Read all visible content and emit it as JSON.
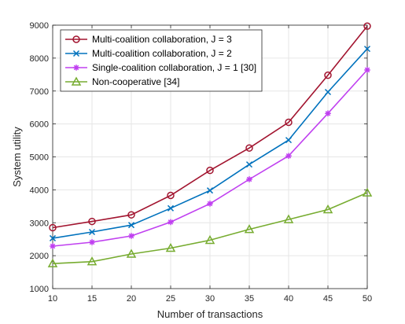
{
  "chart_data": {
    "type": "line",
    "title": "",
    "xlabel": "Number of transactions",
    "ylabel": "System utility",
    "x": [
      10,
      15,
      20,
      25,
      30,
      35,
      40,
      45,
      50
    ],
    "xlim": [
      10,
      50
    ],
    "ylim": [
      1000,
      9000
    ],
    "xticks": [
      10,
      15,
      20,
      25,
      30,
      35,
      40,
      45,
      50
    ],
    "yticks": [
      1000,
      2000,
      3000,
      4000,
      5000,
      6000,
      7000,
      8000,
      9000
    ],
    "grid": true,
    "legend_position": "top-left",
    "series": [
      {
        "name": "Multi-coalition collaboration, J = 3",
        "values": [
          2850,
          3040,
          3240,
          3830,
          4590,
          5270,
          6050,
          7480,
          8970
        ],
        "color": "#A2142F",
        "marker": "circle"
      },
      {
        "name": "Multi-coalition collaboration, J = 2",
        "values": [
          2530,
          2720,
          2930,
          3440,
          3980,
          4770,
          5510,
          6970,
          8280
        ],
        "color": "#0072BD",
        "marker": "x"
      },
      {
        "name": "Single-coalition collaboration, J = 1 [30]",
        "values": [
          2290,
          2410,
          2600,
          3020,
          3580,
          4320,
          5030,
          6320,
          7640
        ],
        "color": "#C040F0",
        "marker": "asterisk"
      },
      {
        "name": "Non-cooperative [34]",
        "values": [
          1760,
          1820,
          2050,
          2230,
          2470,
          2800,
          3100,
          3400,
          3910
        ],
        "color": "#77AC30",
        "marker": "triangle"
      }
    ]
  }
}
